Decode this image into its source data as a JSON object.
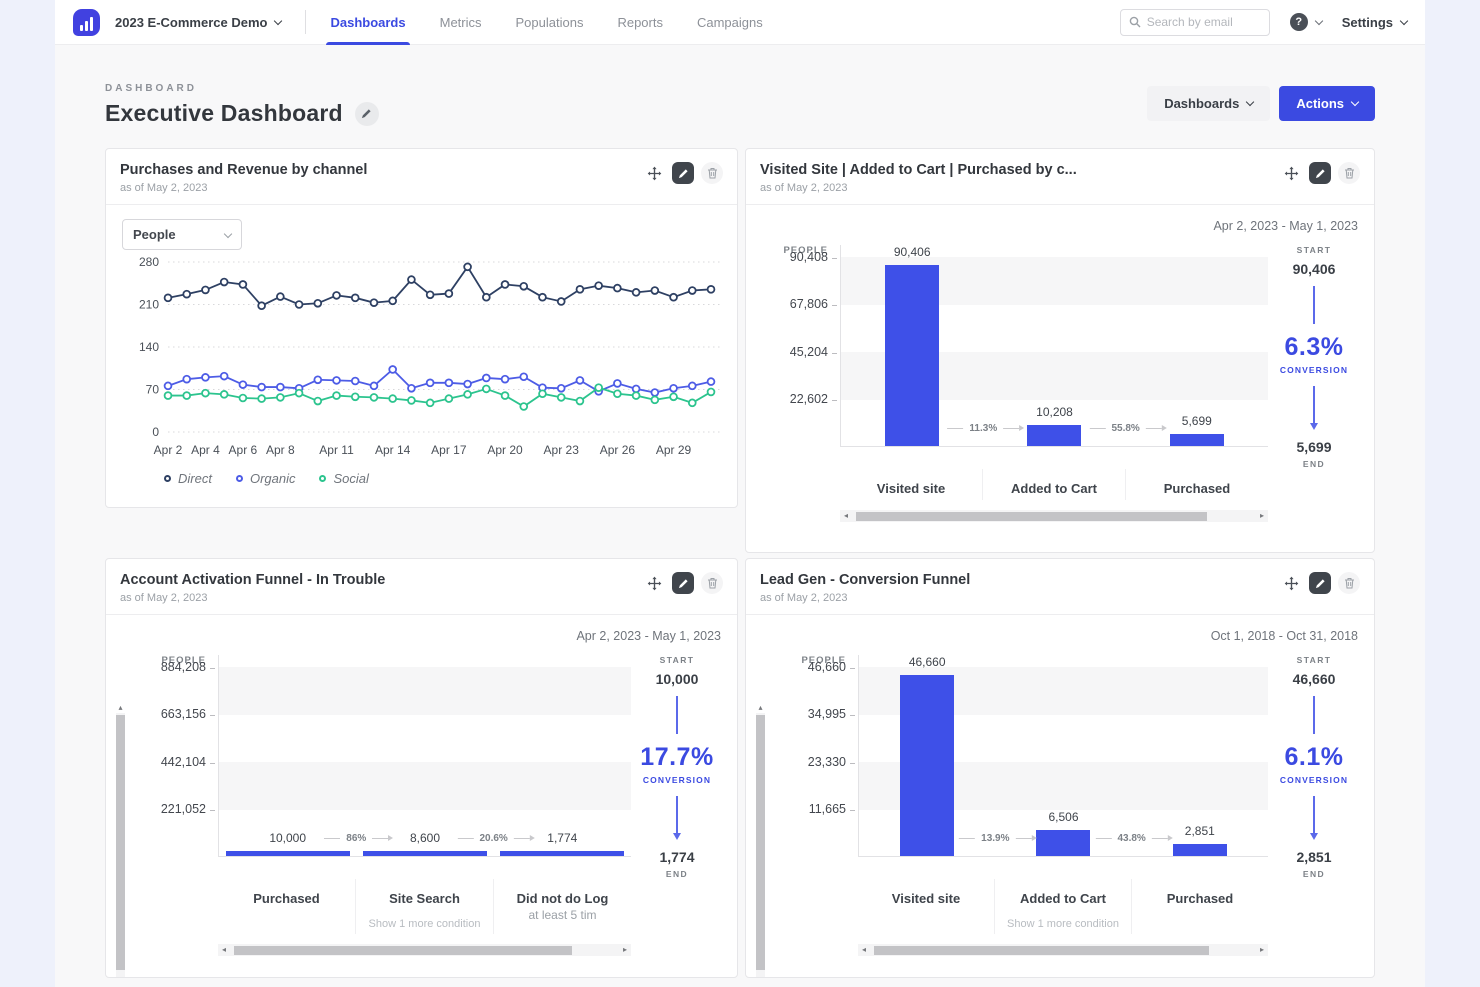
{
  "nav": {
    "workspace": "2023 E-Commerce Demo",
    "links": [
      {
        "label": "Dashboards",
        "active": true
      },
      {
        "label": "Metrics",
        "active": false
      },
      {
        "label": "Populations",
        "active": false
      },
      {
        "label": "Reports",
        "active": false
      },
      {
        "label": "Campaigns",
        "active": false
      }
    ],
    "search_placeholder": "Search by email",
    "settings_label": "Settings"
  },
  "header": {
    "eyebrow": "DASHBOARD",
    "title": "Executive Dashboard",
    "dashboards_button": "Dashboards",
    "actions_button": "Actions"
  },
  "icons": {
    "logo": "bar-chart-logo",
    "search": "magnifier",
    "help": "question-mark-circle",
    "title_edit": "pencil",
    "card_actions": [
      "move",
      "edit",
      "delete"
    ]
  },
  "colors": {
    "accent_blue": "#3b4ae1",
    "bar_blue": "#3e50e8",
    "series_direct": "#2e4063",
    "series_organic": "#4d5ce6",
    "series_social": "#2cc48e",
    "page_background": "#f8f8f9",
    "outer_background": "#eef1fb"
  },
  "chart_data": [
    {
      "type": "line",
      "title": "Purchases and Revenue by channel",
      "as_of": "as of May 2, 2023",
      "measure_selector": "People",
      "ylim": [
        0,
        280
      ],
      "yticks": [
        0,
        70,
        140,
        210,
        280
      ],
      "grid": "dotted-horizontal",
      "legend_position": "bottom-left",
      "x_tick_labels": [
        "Apr 2",
        "Apr 4",
        "Apr 6",
        "Apr 8",
        "Apr 11",
        "Apr 14",
        "Apr 17",
        "Apr 20",
        "Apr 23",
        "Apr 26",
        "Apr 29"
      ],
      "x_tick_positions": [
        0,
        2,
        4,
        6,
        9,
        12,
        15,
        18,
        21,
        24,
        27
      ],
      "series": [
        {
          "name": "Direct",
          "color": "#2e4063",
          "values": [
            221,
            227,
            234,
            247,
            243,
            208,
            223,
            210,
            212,
            225,
            221,
            213,
            216,
            251,
            226,
            228,
            272,
            222,
            243,
            240,
            222,
            215,
            235,
            241,
            237,
            230,
            233,
            222,
            233,
            235
          ]
        },
        {
          "name": "Organic",
          "color": "#4d5ce6",
          "values": [
            76,
            87,
            90,
            92,
            78,
            74,
            74,
            72,
            86,
            85,
            84,
            76,
            103,
            72,
            81,
            81,
            79,
            89,
            87,
            91,
            73,
            72,
            85,
            67,
            80,
            71,
            65,
            72,
            76,
            83
          ]
        },
        {
          "name": "Social",
          "color": "#2cc48e",
          "values": [
            60,
            60,
            64,
            62,
            56,
            55,
            57,
            64,
            51,
            60,
            58,
            57,
            55,
            52,
            48,
            55,
            62,
            71,
            60,
            42,
            63,
            57,
            51,
            73,
            63,
            60,
            53,
            58,
            48,
            66
          ]
        }
      ]
    },
    {
      "type": "funnel-bar",
      "title": "Visited Site | Added to Cart | Purchased by c...",
      "as_of": "as of May 2, 2023",
      "date_range": "Apr 2, 2023 - May 1, 2023",
      "unit_label": "PEOPLE",
      "yticks": [
        "90,408",
        "67,806",
        "45,204",
        "22,602"
      ],
      "max_value": 90408,
      "steps": [
        {
          "label": "Visited site",
          "value": 90406,
          "value_label": "90,406"
        },
        {
          "label": "Added to Cart",
          "value": 10208,
          "value_label": "10,208"
        },
        {
          "label": "Purchased",
          "value": 5699,
          "value_label": "5,699"
        }
      ],
      "transitions": [
        "11.3%",
        "55.8%"
      ],
      "summary": {
        "start_caption": "START",
        "start_value": "90,406",
        "conversion_value": "6.3%",
        "conversion_caption": "CONVERSION",
        "end_value": "5,699",
        "end_caption": "END"
      }
    },
    {
      "type": "funnel-bar",
      "title": "Account Activation Funnel - In Trouble",
      "as_of": "as of May 2, 2023",
      "date_range": "Apr 2, 2023 - May 1, 2023",
      "unit_label": "PEOPLE",
      "yticks": [
        "884,208",
        "663,156",
        "442,104",
        "221,052"
      ],
      "max_value": 884208,
      "steps": [
        {
          "label": "Purchased",
          "value": 10000,
          "value_label": "10,000"
        },
        {
          "label": "Site Search",
          "value": 8600,
          "value_label": "8,600",
          "sublabel": "Show 1 more condition"
        },
        {
          "label": "Did not do Log",
          "label_line2": "at least 5 tim",
          "value": 1774,
          "value_label": "1,774"
        }
      ],
      "transitions": [
        "86%",
        "20.6%"
      ],
      "summary": {
        "start_caption": "START",
        "start_value": "10,000",
        "conversion_value": "17.7%",
        "conversion_caption": "CONVERSION",
        "end_value": "1,774",
        "end_caption": "END"
      }
    },
    {
      "type": "funnel-bar",
      "title": "Lead Gen - Conversion Funnel",
      "as_of": "as of May 2, 2023",
      "date_range": "Oct 1, 2018 - Oct 31, 2018",
      "unit_label": "PEOPLE",
      "yticks": [
        "46,660",
        "34,995",
        "23,330",
        "11,665"
      ],
      "max_value": 46660,
      "steps": [
        {
          "label": "Visited site",
          "value": 46660,
          "value_label": "46,660"
        },
        {
          "label": "Added to Cart",
          "value": 6506,
          "value_label": "6,506",
          "sublabel": "Show 1 more condition"
        },
        {
          "label": "Purchased",
          "value": 2851,
          "value_label": "2,851"
        }
      ],
      "transitions": [
        "13.9%",
        "43.8%"
      ],
      "summary": {
        "start_caption": "START",
        "start_value": "46,660",
        "conversion_value": "6.1%",
        "conversion_caption": "CONVERSION",
        "end_value": "2,851",
        "end_caption": "END"
      }
    }
  ]
}
